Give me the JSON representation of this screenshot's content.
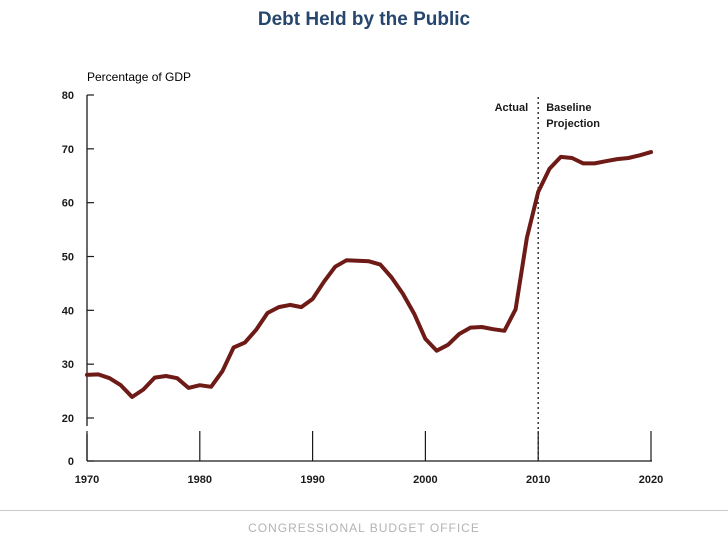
{
  "title": "Debt Held by the Public",
  "footer": "CONGRESSIONAL BUDGET OFFICE",
  "colors": {
    "title": "#27466e",
    "line": "#6e1a16",
    "axis": "#1a1a1a",
    "footer": "#b3b3b3"
  },
  "chart_data": {
    "type": "line",
    "ylabel": "Percentage of GDP",
    "xlabel": "",
    "xlim": [
      1970,
      2020
    ],
    "ylim": [
      0,
      80
    ],
    "y_axis_break": [
      0,
      20
    ],
    "x_ticks": [
      1970,
      1980,
      1990,
      2000,
      2010,
      2020
    ],
    "x_tick_labels": [
      "1970",
      "1980",
      "1990",
      "2000",
      "2010",
      "2020"
    ],
    "y_ticks": [
      0,
      20,
      30,
      40,
      50,
      60,
      70,
      80
    ],
    "y_tick_labels": [
      "0",
      "20",
      "30",
      "40",
      "50",
      "60",
      "70",
      "80"
    ],
    "grid": false,
    "annotations": {
      "divider_x": 2010,
      "left_label": "Actual",
      "right_label_line1": "Baseline",
      "right_label_line2": "Projection"
    },
    "series": [
      {
        "x": [
          1970,
          1971,
          1972,
          1973,
          1974,
          1975,
          1976,
          1977,
          1978,
          1979,
          1980,
          1981,
          1982,
          1983,
          1984,
          1985,
          1986,
          1987,
          1988,
          1989,
          1990,
          1991,
          1992,
          1993,
          1994,
          1995,
          1996,
          1997,
          1998,
          1999,
          2000,
          2001,
          2002,
          2003,
          2004,
          2005,
          2006,
          2007,
          2008,
          2009,
          2010,
          2011,
          2012,
          2013,
          2014,
          2015,
          2016,
          2017,
          2018,
          2019,
          2020
        ],
        "values": [
          28.0,
          28.1,
          27.4,
          26.1,
          23.9,
          25.3,
          27.5,
          27.8,
          27.4,
          25.6,
          26.1,
          25.8,
          28.7,
          33.1,
          34.0,
          36.4,
          39.5,
          40.6,
          41.0,
          40.6,
          42.1,
          45.3,
          48.1,
          49.3,
          49.2,
          49.1,
          48.5,
          46.1,
          43.1,
          39.4,
          34.7,
          32.5,
          33.6,
          35.6,
          36.8,
          36.9,
          36.5,
          36.2,
          40.2,
          53.5,
          62.0,
          66.3,
          68.5,
          68.3,
          67.3,
          67.3,
          67.7,
          68.1,
          68.3,
          68.8,
          69.4
        ]
      }
    ]
  }
}
